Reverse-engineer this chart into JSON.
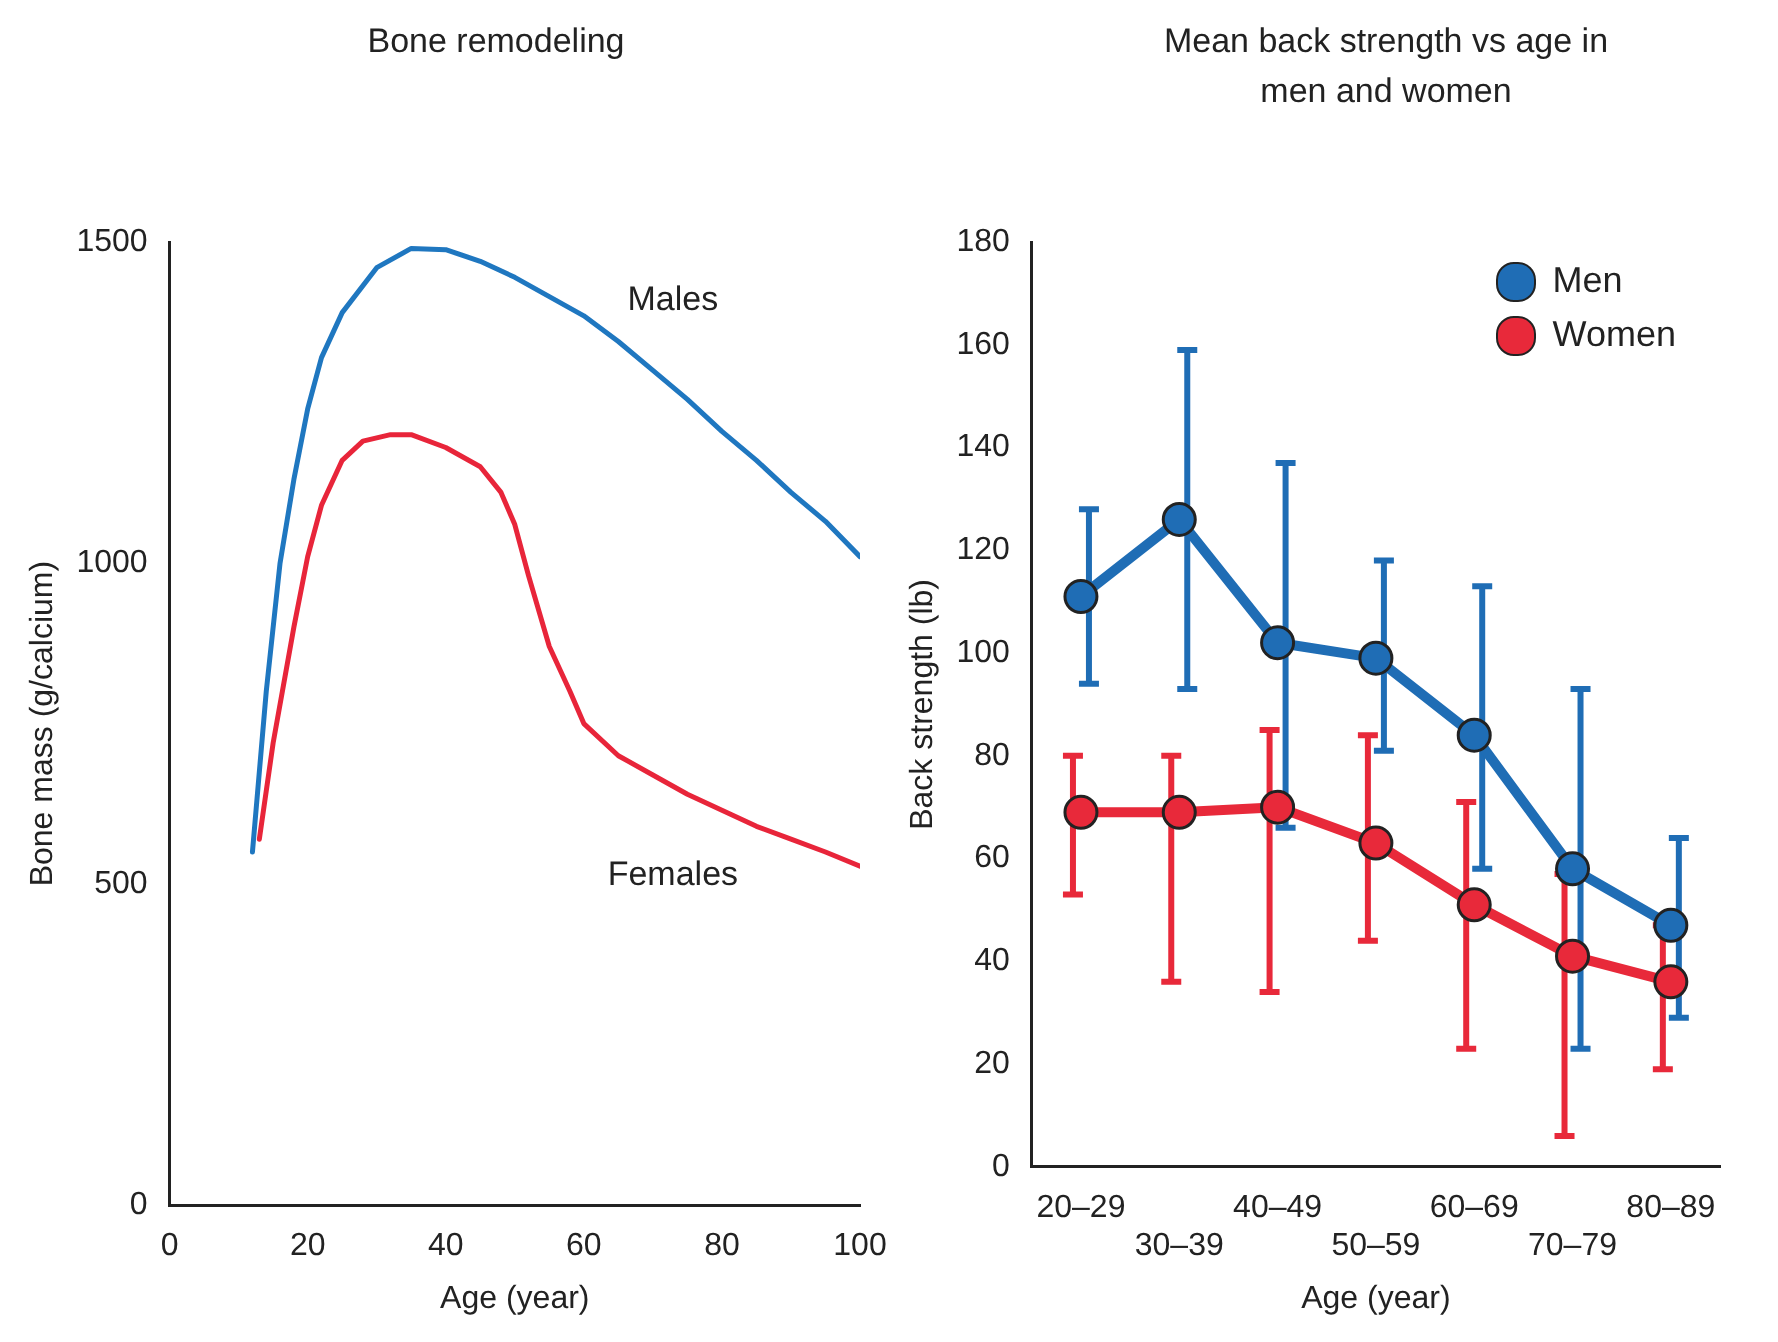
{
  "chart_data": [
    {
      "type": "line",
      "title": "Bone remodeling",
      "xlabel": "Age (year)",
      "ylabel": "Bone mass (g/calcium)",
      "xlim": [
        0,
        100
      ],
      "xticks": [
        0,
        20,
        40,
        60,
        80,
        100
      ],
      "ylim": [
        0,
        1500
      ],
      "yticks": [
        0,
        500,
        1000,
        1500
      ],
      "marker": "none",
      "legend": false,
      "series": [
        {
          "name": "Males",
          "color": "#1f77c0",
          "x": [
            12,
            14,
            16,
            18,
            20,
            22,
            25,
            30,
            35,
            40,
            45,
            50,
            55,
            60,
            65,
            70,
            75,
            80,
            85,
            90,
            95,
            100
          ],
          "values": [
            550,
            800,
            1000,
            1130,
            1240,
            1320,
            1390,
            1460,
            1490,
            1488,
            1470,
            1445,
            1415,
            1385,
            1345,
            1300,
            1255,
            1205,
            1160,
            1110,
            1065,
            1010
          ]
        },
        {
          "name": "Females",
          "color": "#e8253a",
          "x": [
            13,
            15,
            18,
            20,
            22,
            25,
            28,
            32,
            35,
            40,
            45,
            48,
            50,
            52,
            55,
            58,
            60,
            65,
            70,
            75,
            80,
            85,
            90,
            95,
            100
          ],
          "values": [
            570,
            720,
            900,
            1010,
            1090,
            1160,
            1190,
            1200,
            1200,
            1180,
            1150,
            1110,
            1060,
            980,
            870,
            800,
            750,
            700,
            670,
            640,
            615,
            590,
            570,
            550,
            528
          ]
        }
      ]
    },
    {
      "type": "line",
      "title": "Mean back strength vs age in men and women",
      "xlabel": "Age (year)",
      "ylabel": "Back strength (lb)",
      "categories": [
        "20–29",
        "30–39",
        "40–49",
        "50–59",
        "60–69",
        "70–79",
        "80–89"
      ],
      "ylim": [
        0,
        180
      ],
      "yticks": [
        0,
        20,
        40,
        60,
        80,
        100,
        120,
        140,
        160,
        180
      ],
      "marker": "circle",
      "legend": "top right",
      "series": [
        {
          "name": "Men",
          "color": "#1f6db5",
          "values": [
            111,
            126,
            102,
            99,
            84,
            58,
            47
          ],
          "errors": [
            [
              94,
              128
            ],
            [
              93,
              159
            ],
            [
              66,
              137
            ],
            [
              81,
              118
            ],
            [
              58,
              113
            ],
            [
              23,
              93
            ],
            [
              29,
              64
            ]
          ]
        },
        {
          "name": "Women",
          "color": "#e8293a",
          "values": [
            69,
            69,
            70,
            63,
            51,
            41,
            36
          ],
          "errors": [
            [
              53,
              80
            ],
            [
              36,
              80
            ],
            [
              34,
              85
            ],
            [
              44,
              84
            ],
            [
              23,
              71
            ],
            [
              6,
              57
            ],
            [
              19,
              47
            ]
          ]
        }
      ]
    }
  ]
}
